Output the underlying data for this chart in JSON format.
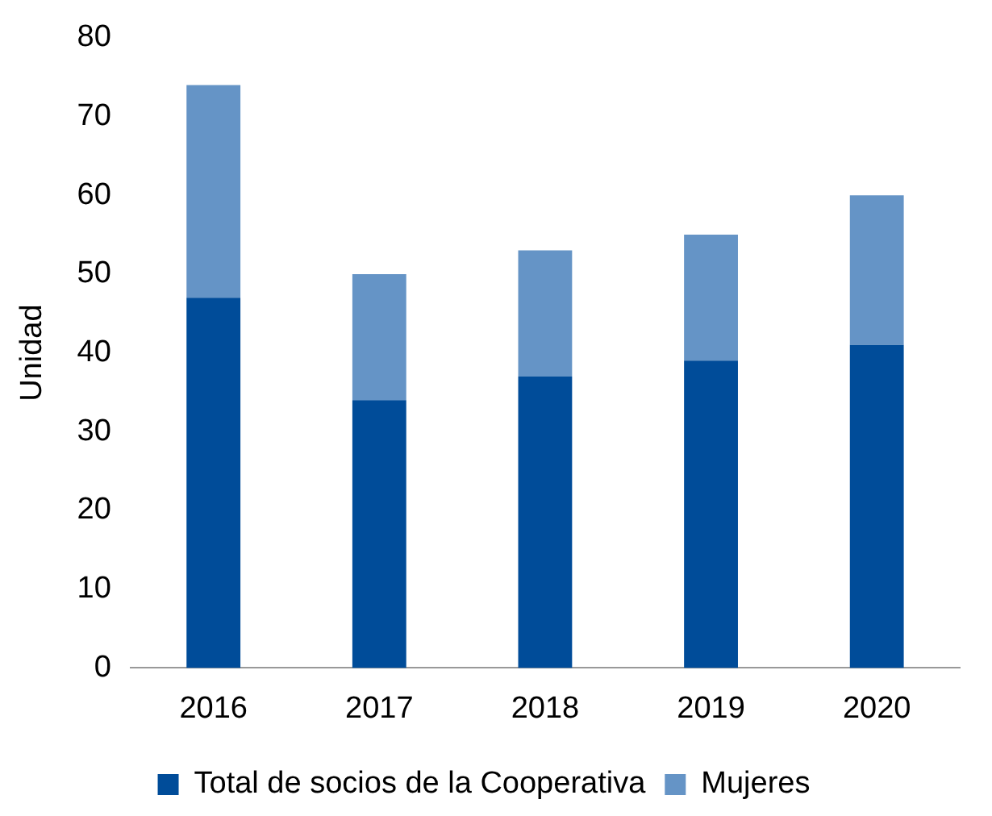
{
  "chart_data": {
    "type": "bar",
    "ylabel": "Unidad",
    "categories": [
      "2016",
      "2017",
      "2018",
      "2019",
      "2020"
    ],
    "series": [
      {
        "name": "Total de socios de la Cooperativa",
        "color": "#004c99",
        "values": [
          47,
          34,
          37,
          39,
          41
        ]
      },
      {
        "name": "Mujeres",
        "color": "#6594c6",
        "values": [
          27,
          16,
          16,
          16,
          19
        ]
      }
    ],
    "stacked": true,
    "ylim": [
      0,
      80
    ],
    "yticks": [
      0,
      10,
      20,
      30,
      40,
      50,
      60,
      70,
      80
    ],
    "grid": false,
    "legend": "bottom"
  }
}
